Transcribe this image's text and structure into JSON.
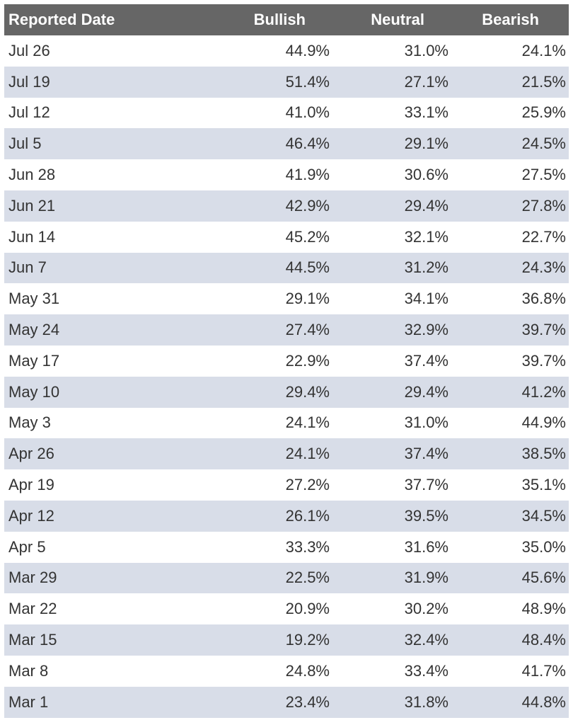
{
  "table": {
    "headers": {
      "date": "Reported Date",
      "bullish": "Bullish",
      "neutral": "Neutral",
      "bearish": "Bearish"
    },
    "rows": [
      {
        "date": "Jul 26",
        "bullish": "44.9%",
        "neutral": "31.0%",
        "bearish": "24.1%"
      },
      {
        "date": "Jul 19",
        "bullish": "51.4%",
        "neutral": "27.1%",
        "bearish": "21.5%"
      },
      {
        "date": "Jul 12",
        "bullish": "41.0%",
        "neutral": "33.1%",
        "bearish": "25.9%"
      },
      {
        "date": "Jul 5",
        "bullish": "46.4%",
        "neutral": "29.1%",
        "bearish": "24.5%"
      },
      {
        "date": "Jun 28",
        "bullish": "41.9%",
        "neutral": "30.6%",
        "bearish": "27.5%"
      },
      {
        "date": "Jun 21",
        "bullish": "42.9%",
        "neutral": "29.4%",
        "bearish": "27.8%"
      },
      {
        "date": "Jun 14",
        "bullish": "45.2%",
        "neutral": "32.1%",
        "bearish": "22.7%"
      },
      {
        "date": "Jun 7",
        "bullish": "44.5%",
        "neutral": "31.2%",
        "bearish": "24.3%"
      },
      {
        "date": "May 31",
        "bullish": "29.1%",
        "neutral": "34.1%",
        "bearish": "36.8%"
      },
      {
        "date": "May 24",
        "bullish": "27.4%",
        "neutral": "32.9%",
        "bearish": "39.7%"
      },
      {
        "date": "May 17",
        "bullish": "22.9%",
        "neutral": "37.4%",
        "bearish": "39.7%"
      },
      {
        "date": "May 10",
        "bullish": "29.4%",
        "neutral": "29.4%",
        "bearish": "41.2%"
      },
      {
        "date": "May 3",
        "bullish": "24.1%",
        "neutral": "31.0%",
        "bearish": "44.9%"
      },
      {
        "date": "Apr 26",
        "bullish": "24.1%",
        "neutral": "37.4%",
        "bearish": "38.5%"
      },
      {
        "date": "Apr 19",
        "bullish": "27.2%",
        "neutral": "37.7%",
        "bearish": "35.1%"
      },
      {
        "date": "Apr 12",
        "bullish": "26.1%",
        "neutral": "39.5%",
        "bearish": "34.5%"
      },
      {
        "date": "Apr 5",
        "bullish": "33.3%",
        "neutral": "31.6%",
        "bearish": "35.0%"
      },
      {
        "date": "Mar 29",
        "bullish": "22.5%",
        "neutral": "31.9%",
        "bearish": "45.6%"
      },
      {
        "date": "Mar 22",
        "bullish": "20.9%",
        "neutral": "30.2%",
        "bearish": "48.9%"
      },
      {
        "date": "Mar 15",
        "bullish": "19.2%",
        "neutral": "32.4%",
        "bearish": "48.4%"
      },
      {
        "date": "Mar 8",
        "bullish": "24.8%",
        "neutral": "33.4%",
        "bearish": "41.7%"
      },
      {
        "date": "Mar 1",
        "bullish": "23.4%",
        "neutral": "31.8%",
        "bearish": "44.8%"
      }
    ]
  },
  "colors": {
    "header_bg": "#666666",
    "header_text": "#ffffff",
    "stripe_bg": "#d8dde8",
    "body_text": "#333333"
  }
}
